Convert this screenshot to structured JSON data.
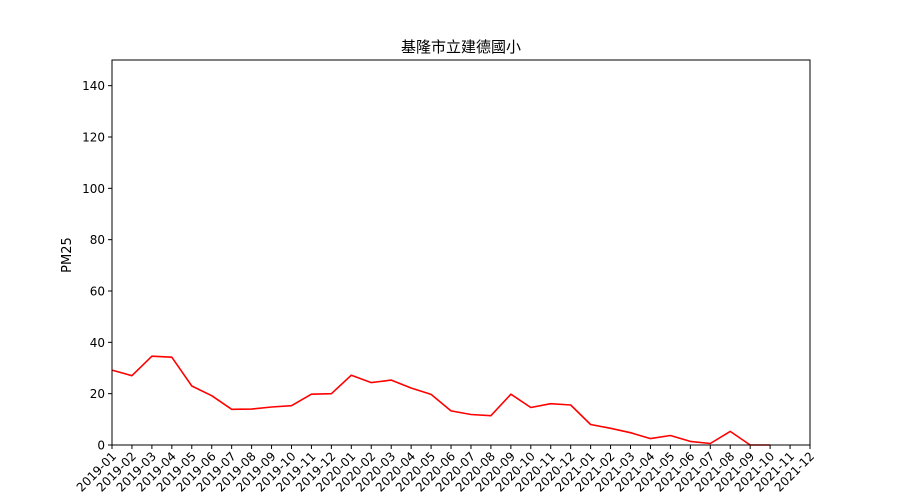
{
  "chart_data": {
    "type": "line",
    "title": "基隆市立建德國小",
    "xlabel": "",
    "ylabel": "PM25",
    "ylim": [
      0,
      150
    ],
    "yticks": [
      0,
      20,
      40,
      60,
      80,
      100,
      120,
      140
    ],
    "grid": false,
    "categories": [
      "2019-01",
      "2019-02",
      "2019-03",
      "2019-04",
      "2019-05",
      "2019-06",
      "2019-07",
      "2019-08",
      "2019-09",
      "2019-10",
      "2019-11",
      "2019-12",
      "2020-01",
      "2020-02",
      "2020-03",
      "2020-04",
      "2020-05",
      "2020-06",
      "2020-07",
      "2020-08",
      "2020-09",
      "2020-10",
      "2020-11",
      "2020-12",
      "2021-01",
      "2021-02",
      "2021-03",
      "2021-04",
      "2021-05",
      "2021-06",
      "2021-07",
      "2021-08",
      "2021-09",
      "2021-10",
      "2021-11",
      "2021-12"
    ],
    "series": [
      {
        "color": "#ff0000",
        "values": [
          29.2,
          27.0,
          34.6,
          34.2,
          23.0,
          19.2,
          13.9,
          14.0,
          14.8,
          15.3,
          19.8,
          20.0,
          27.2,
          24.3,
          25.3,
          22.2,
          19.7,
          13.3,
          11.9,
          11.4,
          19.8,
          14.6,
          16.1,
          15.6,
          8.0,
          6.5,
          4.8,
          2.5,
          3.7,
          1.4,
          0.6,
          5.3,
          0.0,
          0.0,
          null,
          null
        ]
      }
    ]
  }
}
